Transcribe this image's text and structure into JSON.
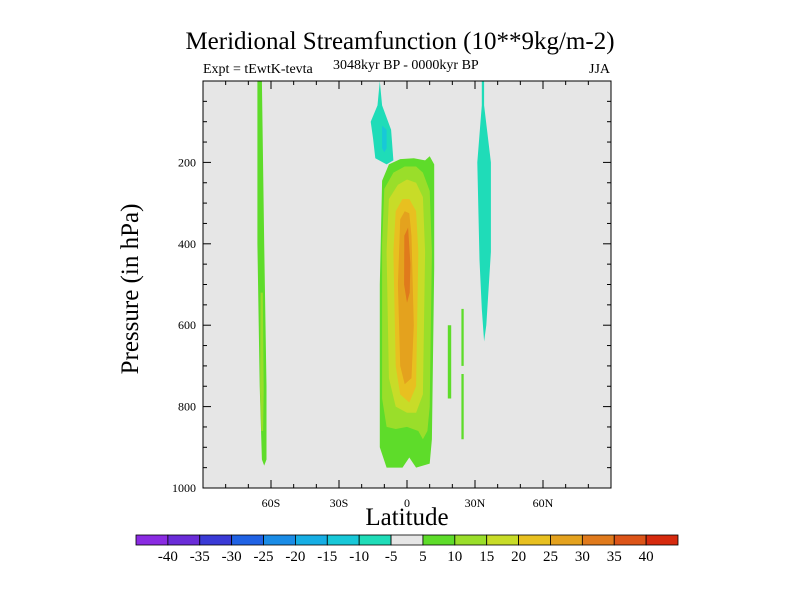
{
  "chart_data": {
    "type": "contour",
    "title": "Meridional Streamfunction (10**9kg/m-2)",
    "left_string": "Expt = tEwtK-tevta",
    "center_string": "3048kyr BP - 0000kyr BP",
    "right_string": "JJA",
    "xlabel": "Latitude",
    "ylabel": "Pressure (in hPa)",
    "xlim": [
      -90,
      90
    ],
    "ylim": [
      1000,
      0
    ],
    "x_ticks": [
      {
        "value": -60,
        "label": "60S"
      },
      {
        "value": -30,
        "label": "30S"
      },
      {
        "value": 0,
        "label": "0"
      },
      {
        "value": 30,
        "label": "30N"
      },
      {
        "value": 60,
        "label": "60N"
      }
    ],
    "y_ticks": [
      {
        "value": 200,
        "label": "200"
      },
      {
        "value": 400,
        "label": "400"
      },
      {
        "value": 600,
        "label": "600"
      },
      {
        "value": 800,
        "label": "800"
      },
      {
        "value": 1000,
        "label": "1000"
      }
    ],
    "missing_color": "#e6e6e6",
    "colorbar": {
      "levels": [
        "-40",
        "-35",
        "-30",
        "-25",
        "-20",
        "-15",
        "-10",
        "-5",
        "5",
        "10",
        "15",
        "20",
        "25",
        "30",
        "35",
        "40"
      ],
      "colors": [
        "#8a2be2",
        "#6a2cd8",
        "#3a3ad6",
        "#2062e4",
        "#1a8ce6",
        "#16aee4",
        "#18c8d8",
        "#1fdcb8",
        "#e6e6e6",
        "#5edc2a",
        "#9ade2a",
        "#c8dc28",
        "#e8c020",
        "#e4a21e",
        "#e07a1c",
        "#dc5418",
        "#d62a0e"
      ]
    },
    "regions": [
      {
        "name": "southern-high-lat-cell",
        "level": 5,
        "color": "#5edc2a",
        "points": [
          [
            -66,
            0
          ],
          [
            -64,
            0
          ],
          [
            -63,
            400
          ],
          [
            -62,
            750
          ],
          [
            -62,
            930
          ],
          [
            -63,
            945
          ],
          [
            -64,
            930
          ],
          [
            -65,
            750
          ],
          [
            -66,
            400
          ]
        ]
      },
      {
        "name": "southern-high-lat-cell-core",
        "level": 10,
        "color": "#9ade2a",
        "points": [
          [
            -64.6,
            520
          ],
          [
            -63.6,
            520
          ],
          [
            -63.2,
            760
          ],
          [
            -63.5,
            860
          ],
          [
            -64.3,
            860
          ],
          [
            -64.8,
            760
          ]
        ]
      },
      {
        "name": "upper-negative-cell",
        "level": -5,
        "color": "#1fdcb8",
        "points": [
          [
            -12,
            0
          ],
          [
            -11,
            60
          ],
          [
            -7,
            120
          ],
          [
            -6,
            195
          ],
          [
            -9,
            205
          ],
          [
            -14,
            190
          ],
          [
            -15,
            140
          ],
          [
            -16,
            100
          ],
          [
            -13,
            60
          ]
        ]
      },
      {
        "name": "upper-negative-cell-core",
        "level": -10,
        "color": "#18c8d8",
        "points": [
          [
            -11,
            110
          ],
          [
            -9,
            120
          ],
          [
            -9,
            165
          ],
          [
            -10,
            175
          ],
          [
            -11,
            165
          ]
        ]
      },
      {
        "name": "tropical-cell-outer",
        "level": 5,
        "color": "#5edc2a",
        "points": [
          [
            -11,
            245
          ],
          [
            -8,
            205
          ],
          [
            -3,
            192
          ],
          [
            3,
            190
          ],
          [
            8,
            195
          ],
          [
            10,
            185
          ],
          [
            12,
            205
          ],
          [
            12,
            460
          ],
          [
            11,
            880
          ],
          [
            10,
            940
          ],
          [
            4,
            950
          ],
          [
            1,
            925
          ],
          [
            -2,
            950
          ],
          [
            -9,
            950
          ],
          [
            -12,
            900
          ],
          [
            -12,
            500
          ]
        ]
      },
      {
        "name": "tropical-cell-10",
        "level": 10,
        "color": "#9ade2a",
        "points": [
          [
            -10,
            265
          ],
          [
            -6,
            225
          ],
          [
            -1,
            210
          ],
          [
            4,
            210
          ],
          [
            7,
            225
          ],
          [
            10,
            270
          ],
          [
            11,
            420
          ],
          [
            10,
            800
          ],
          [
            9,
            860
          ],
          [
            7,
            880
          ],
          [
            5,
            860
          ],
          [
            0,
            850
          ],
          [
            -5,
            855
          ],
          [
            -9,
            850
          ],
          [
            -11,
            780
          ],
          [
            -11,
            400
          ]
        ]
      },
      {
        "name": "tropical-cell-15",
        "level": 15,
        "color": "#c8dc28",
        "points": [
          [
            -8,
            290
          ],
          [
            -4,
            255
          ],
          [
            0,
            242
          ],
          [
            4,
            250
          ],
          [
            7,
            285
          ],
          [
            8,
            420
          ],
          [
            7,
            770
          ],
          [
            4,
            815
          ],
          [
            0,
            815
          ],
          [
            -5,
            800
          ],
          [
            -8,
            730
          ],
          [
            -9,
            420
          ]
        ]
      },
      {
        "name": "tropical-cell-20",
        "level": 20,
        "color": "#e8c020",
        "points": [
          [
            -5,
            320
          ],
          [
            -2,
            290
          ],
          [
            1,
            290
          ],
          [
            4,
            320
          ],
          [
            5,
            420
          ],
          [
            4,
            750
          ],
          [
            1,
            790
          ],
          [
            -3,
            770
          ],
          [
            -5,
            700
          ],
          [
            -6,
            420
          ]
        ]
      },
      {
        "name": "tropical-cell-25",
        "level": 25,
        "color": "#e4a21e",
        "points": [
          [
            -3,
            340
          ],
          [
            -1,
            320
          ],
          [
            1,
            325
          ],
          [
            2,
            380
          ],
          [
            3,
            600
          ],
          [
            2,
            730
          ],
          [
            -1,
            745
          ],
          [
            -3,
            700
          ],
          [
            -4,
            500
          ]
        ]
      },
      {
        "name": "tropical-cell-core",
        "level": 30,
        "color": "#e07a1c",
        "points": [
          [
            -1.2,
            380
          ],
          [
            0.5,
            360
          ],
          [
            1.5,
            450
          ],
          [
            1.2,
            520
          ],
          [
            0,
            545
          ],
          [
            -1.3,
            500
          ]
        ]
      },
      {
        "name": "northern-negative-band",
        "level": -5,
        "color": "#1fdcb8",
        "points": [
          [
            33,
            0
          ],
          [
            34,
            0
          ],
          [
            34,
            60
          ],
          [
            37,
            200
          ],
          [
            37,
            420
          ],
          [
            35,
            600
          ],
          [
            34,
            640
          ],
          [
            33,
            560
          ],
          [
            32,
            440
          ],
          [
            31,
            200
          ],
          [
            33,
            60
          ]
        ]
      },
      {
        "name": "northern-green-sliver-1",
        "level": 5,
        "color": "#5edc2a",
        "points": [
          [
            24,
            560
          ],
          [
            25,
            560
          ],
          [
            25,
            700
          ],
          [
            24,
            700
          ]
        ]
      },
      {
        "name": "northern-green-sliver-2",
        "level": 5,
        "color": "#5edc2a",
        "points": [
          [
            24,
            720
          ],
          [
            25,
            720
          ],
          [
            25,
            880
          ],
          [
            24,
            880
          ]
        ]
      },
      {
        "name": "northern-green-sliver-3",
        "level": 5,
        "color": "#5edc2a",
        "points": [
          [
            18,
            600
          ],
          [
            19.5,
            600
          ],
          [
            19.5,
            780
          ],
          [
            18,
            780
          ]
        ]
      }
    ]
  }
}
